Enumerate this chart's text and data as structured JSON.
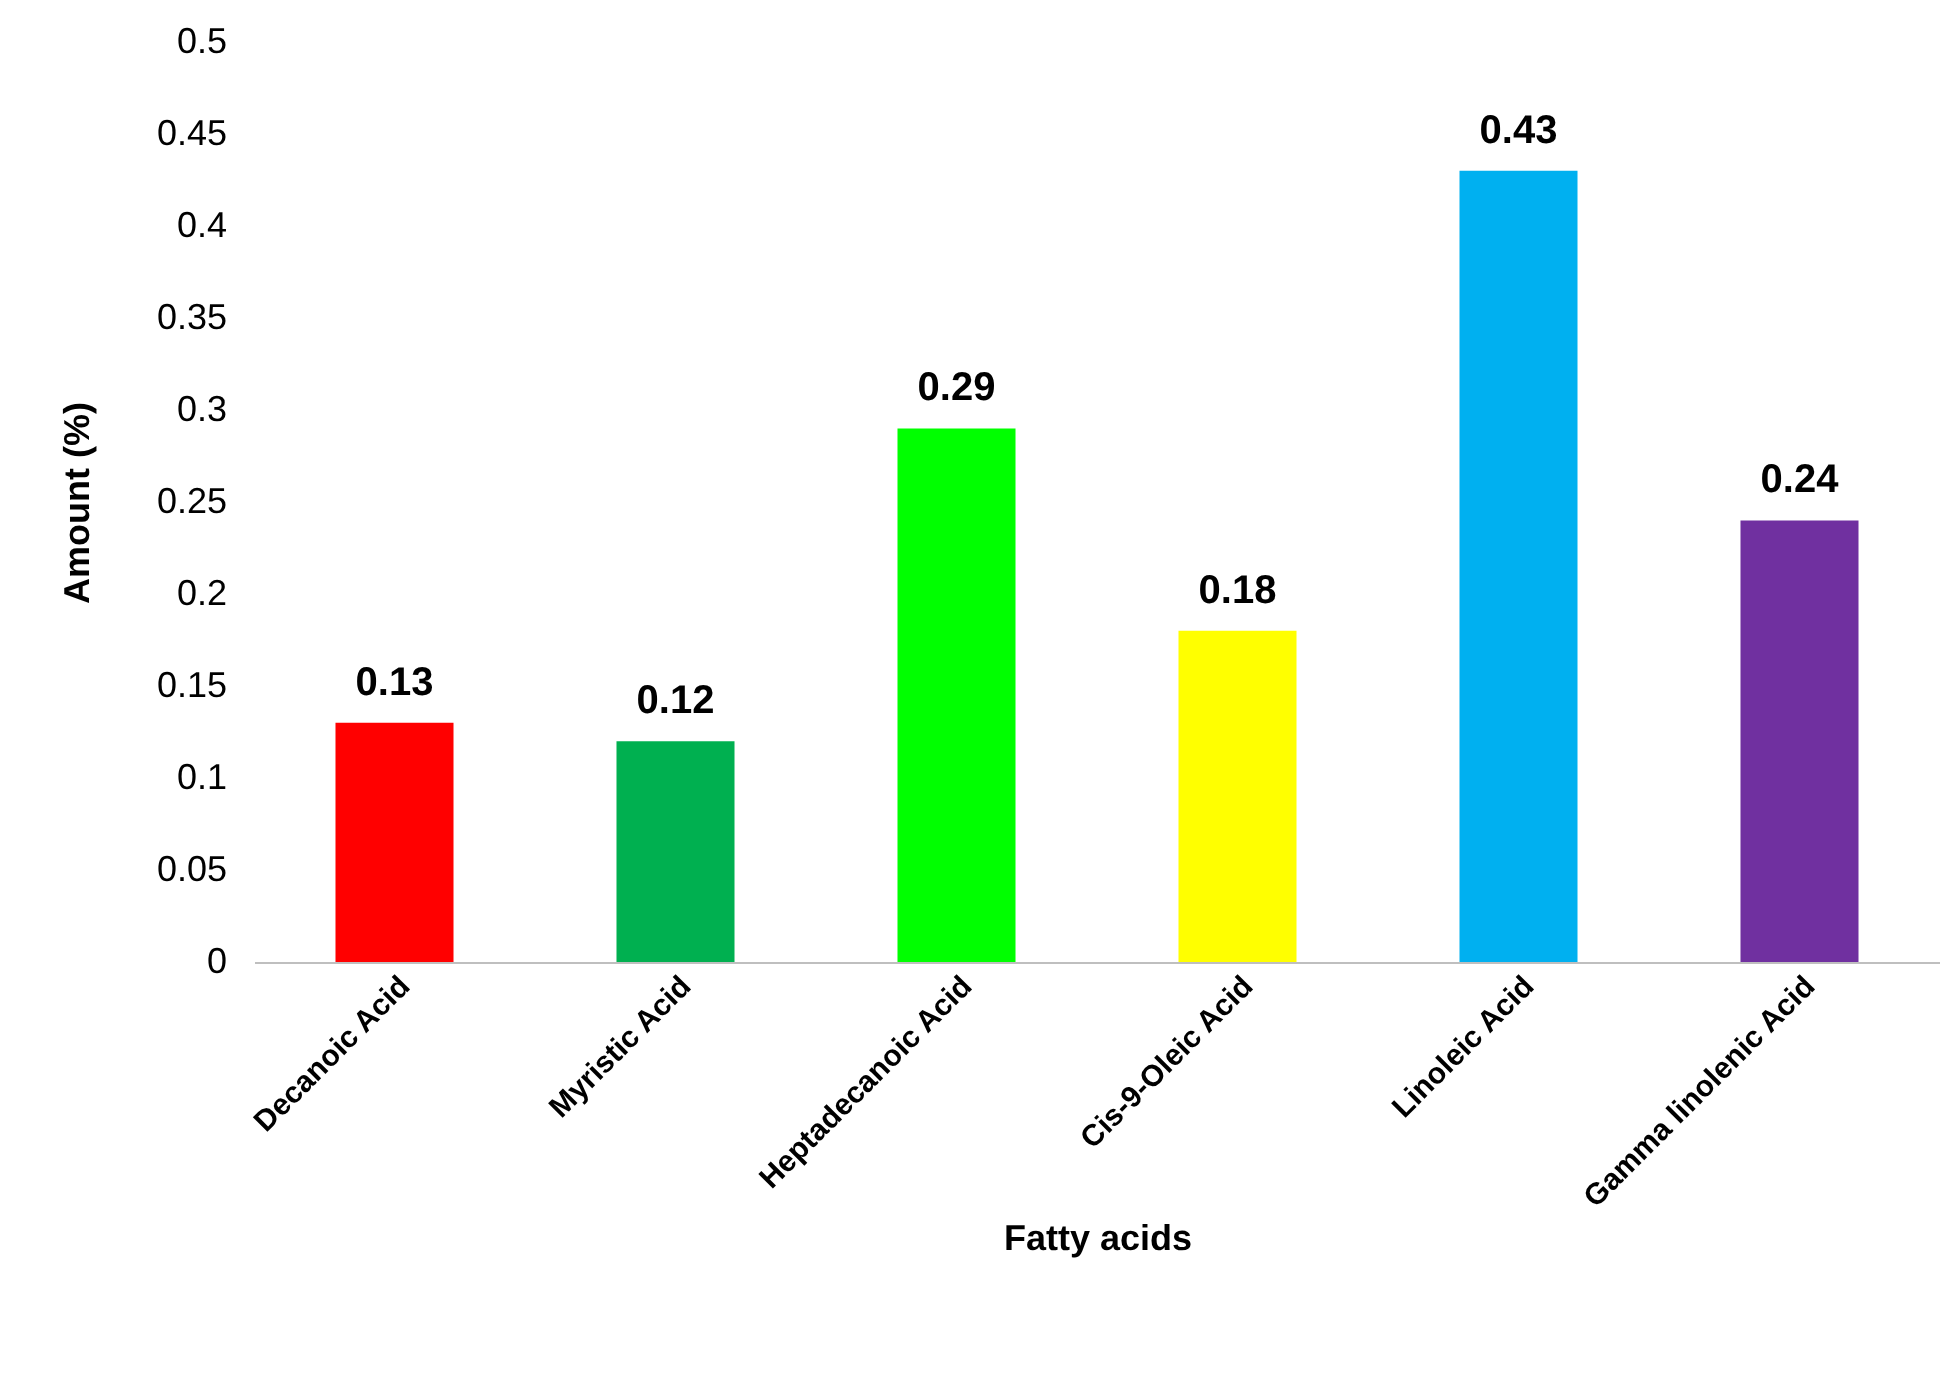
{
  "chart_data": {
    "type": "bar",
    "xlabel": "Fatty acids",
    "ylabel": "Amount (%)",
    "categories": [
      "Decanoic Acid",
      "Myristic Acid",
      "Heptadecanoic Acid",
      "Cis-9-Oleic Acid",
      "Linoleic Acid",
      "Gamma linolenic Acid"
    ],
    "values": [
      0.13,
      0.12,
      0.29,
      0.18,
      0.43,
      0.24
    ],
    "colors": [
      "#ff0000",
      "#00b050",
      "#00ff00",
      "#ffff00",
      "#00b0f0",
      "#7030a0"
    ],
    "ylim": [
      0,
      0.5
    ],
    "yticks": [
      0,
      0.05,
      0.1,
      0.15,
      0.2,
      0.25,
      0.3,
      0.35,
      0.4,
      0.45,
      0.5
    ],
    "data_labels": true,
    "grid": false
  }
}
